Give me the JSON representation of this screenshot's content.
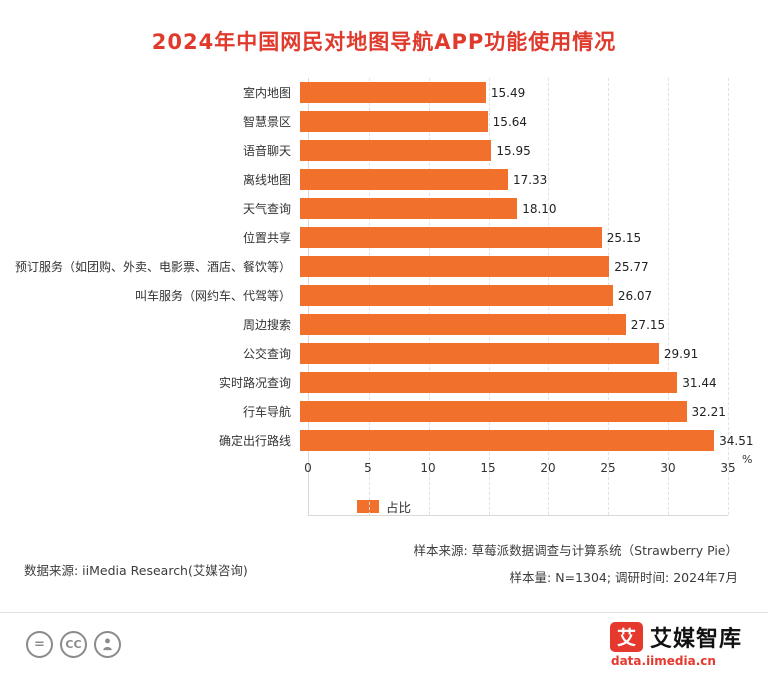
{
  "title": "2024年中国网民对地图导航APP功能使用情况",
  "chart_data": {
    "type": "bar",
    "orientation": "horizontal",
    "categories": [
      "室内地图",
      "智慧景区",
      "语音聊天",
      "离线地图",
      "天气查询",
      "位置共享",
      "预订服务（如团购、外卖、电影票、酒店、餐饮等）",
      "叫车服务（网约车、代驾等）",
      "周边搜索",
      "公交查询",
      "实时路况查询",
      "行车导航",
      "确定出行路线"
    ],
    "values": [
      15.49,
      15.64,
      15.95,
      17.33,
      18.1,
      25.15,
      25.77,
      26.07,
      27.15,
      29.91,
      31.44,
      32.21,
      34.51
    ],
    "value_labels": [
      "15.49",
      "15.64",
      "15.95",
      "17.33",
      "18.10",
      "25.15",
      "25.77",
      "26.07",
      "27.15",
      "29.91",
      "31.44",
      "32.21",
      "34.51"
    ],
    "xlim": [
      0,
      35
    ],
    "x_ticks": [
      0,
      5,
      10,
      15,
      20,
      25,
      30,
      35
    ],
    "x_unit": "%",
    "grid": "vertical-dashed",
    "legend": [
      {
        "label": "占比",
        "color": "#f0702c"
      }
    ]
  },
  "footer": {
    "sample_source": "样本来源: 草莓派数据调查与计算系统（Strawberry Pie）",
    "sample_info": "样本量: N=1304; 调研时间: 2024年7月",
    "data_source": "数据来源: iiMedia Research(艾媒咨询)"
  },
  "license_icons": [
    {
      "name": "equals-license-icon",
      "glyph": "="
    },
    {
      "name": "cc-license-icon",
      "glyph": "CC"
    },
    {
      "name": "person-license-icon",
      "glyph": "person"
    }
  ],
  "branding": {
    "logo_glyph": "艾",
    "logo_name": "艾媒智库",
    "logo_url": "data.iimedia.cn"
  },
  "colors": {
    "title": "#e03a2d",
    "bar": "#f0702c",
    "logo_red": "#e6392e",
    "url_red": "#e6392e"
  }
}
